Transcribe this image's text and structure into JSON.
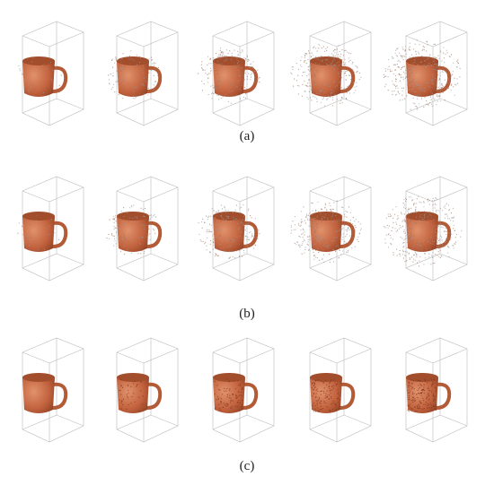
{
  "figure": {
    "captions": [
      "(a)",
      "(b)",
      "(c)"
    ]
  }
}
